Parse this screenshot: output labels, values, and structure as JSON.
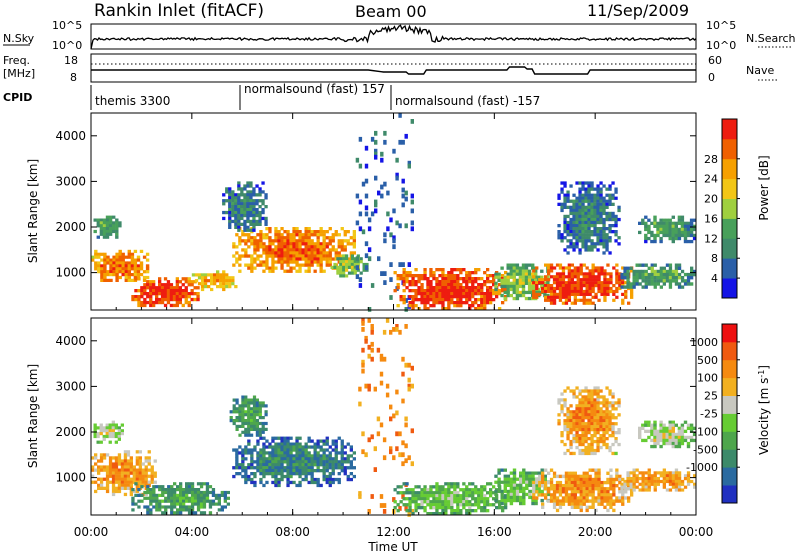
{
  "header": {
    "title": "Rankin Inlet (fitACF)",
    "beam": "Beam 00",
    "date": "11/Sep/2009"
  },
  "top_panels": {
    "nsky": {
      "label": "N.Sky",
      "left_ticks": [
        "10^5",
        "10^0"
      ],
      "right_label": "N.Search",
      "right_ticks": [
        "10^5",
        "10^0"
      ]
    },
    "freq": {
      "label_line1": "Freq.",
      "label_line2": "[MHz]",
      "left_ticks": [
        "18",
        "8"
      ],
      "right_label": "Nave",
      "right_ticks": [
        "60",
        "0"
      ]
    },
    "cpid": {
      "label": "CPID",
      "segments": [
        {
          "label": "themis 3300",
          "start": 0.0
        },
        {
          "label": "normalsound (fast) 157",
          "start": 6.0
        },
        {
          "label": "normalsound (fast) -157",
          "start": 12.0
        }
      ]
    }
  },
  "chart_data": [
    {
      "type": "heatmap",
      "panel": "power",
      "ylabel": "Slant Range [km]",
      "xlim": [
        0,
        24
      ],
      "ylim": [
        180,
        4500
      ],
      "yticks": [
        1000,
        2000,
        3000,
        4000
      ],
      "colorbar": {
        "label": "Power [dB]",
        "ticks": [
          "4",
          "8",
          "12",
          "16",
          "20",
          "24",
          "28"
        ],
        "colors": [
          "#1414e6",
          "#2a5fa8",
          "#3f8a6a",
          "#48a05a",
          "#9fcf3f",
          "#f2c616",
          "#f6a000",
          "#f06000",
          "#ee1c10"
        ]
      },
      "regions": [
        {
          "t": [
            0.1,
            1.2
          ],
          "r": [
            1750,
            2250
          ],
          "level": 3
        },
        {
          "t": [
            0.0,
            2.3
          ],
          "r": [
            800,
            1500
          ],
          "level": 7
        },
        {
          "t": [
            1.6,
            4.3
          ],
          "r": [
            250,
            900
          ],
          "level": 8
        },
        {
          "t": [
            4.0,
            5.8
          ],
          "r": [
            600,
            1050
          ],
          "level": 6
        },
        {
          "t": [
            5.6,
            10.5
          ],
          "r": [
            1000,
            2000
          ],
          "level": 7
        },
        {
          "t": [
            5.2,
            7.0
          ],
          "r": [
            1900,
            3000
          ],
          "level": 2
        },
        {
          "t": [
            9.5,
            11.0
          ],
          "r": [
            900,
            1400
          ],
          "level": 4
        },
        {
          "t": [
            10.5,
            12.8
          ],
          "r": [
            180,
            4500
          ],
          "level": 1
        },
        {
          "t": [
            12.0,
            16.5
          ],
          "r": [
            180,
            1100
          ],
          "level": 8
        },
        {
          "t": [
            16.0,
            18.3
          ],
          "r": [
            400,
            1200
          ],
          "level": 4
        },
        {
          "t": [
            17.5,
            21.5
          ],
          "r": [
            300,
            1200
          ],
          "level": 8
        },
        {
          "t": [
            21.0,
            24.0
          ],
          "r": [
            650,
            1200
          ],
          "level": 3
        },
        {
          "t": [
            21.7,
            24.0
          ],
          "r": [
            1650,
            2250
          ],
          "level": 3
        },
        {
          "t": [
            18.5,
            21.0
          ],
          "r": [
            1400,
            3000
          ],
          "level": 2
        }
      ]
    },
    {
      "type": "heatmap",
      "panel": "velocity",
      "xlabel": "Time UT",
      "ylabel": "Slant Range [km]",
      "xlim": [
        0,
        24
      ],
      "ylim": [
        180,
        4500
      ],
      "xticks": [
        "00:00",
        "04:00",
        "08:00",
        "12:00",
        "16:00",
        "20:00",
        "00:00"
      ],
      "yticks": [
        1000,
        2000,
        3000,
        4000
      ],
      "colorbar": {
        "label": "Velocity [m s^-1]",
        "ticks": [
          "1000",
          "500",
          "100",
          "25",
          "-25",
          "-100",
          "-500",
          "-1000"
        ],
        "colors": [
          "#2030c0",
          "#2a6aa0",
          "#3c8a6a",
          "#4ea64c",
          "#66cc33",
          "#c8c8c0",
          "#f2b020",
          "#f58a10",
          "#f05a10",
          "#ee1010"
        ]
      },
      "regions": [
        {
          "t": [
            0.1,
            1.3
          ],
          "r": [
            1750,
            2250
          ],
          "level": 5
        },
        {
          "t": [
            0.0,
            2.6
          ],
          "r": [
            600,
            1600
          ],
          "level": 7
        },
        {
          "t": [
            1.6,
            5.5
          ],
          "r": [
            200,
            900
          ],
          "level": 3
        },
        {
          "t": [
            5.6,
            10.5
          ],
          "r": [
            800,
            1900
          ],
          "level": 2
        },
        {
          "t": [
            5.5,
            7.0
          ],
          "r": [
            1900,
            2800
          ],
          "level": 3
        },
        {
          "t": [
            10.6,
            12.8
          ],
          "r": [
            180,
            4500
          ],
          "level": 7
        },
        {
          "t": [
            12.0,
            16.5
          ],
          "r": [
            180,
            900
          ],
          "level": 4
        },
        {
          "t": [
            16.0,
            18.2
          ],
          "r": [
            400,
            1200
          ],
          "level": 4
        },
        {
          "t": [
            17.5,
            21.5
          ],
          "r": [
            250,
            1200
          ],
          "level": 7
        },
        {
          "t": [
            21.0,
            24.0
          ],
          "r": [
            700,
            1200
          ],
          "level": 7
        },
        {
          "t": [
            21.7,
            24.0
          ],
          "r": [
            1650,
            2250
          ],
          "level": 5
        },
        {
          "t": [
            18.5,
            21.0
          ],
          "r": [
            1500,
            3000
          ],
          "level": 7
        }
      ]
    }
  ]
}
